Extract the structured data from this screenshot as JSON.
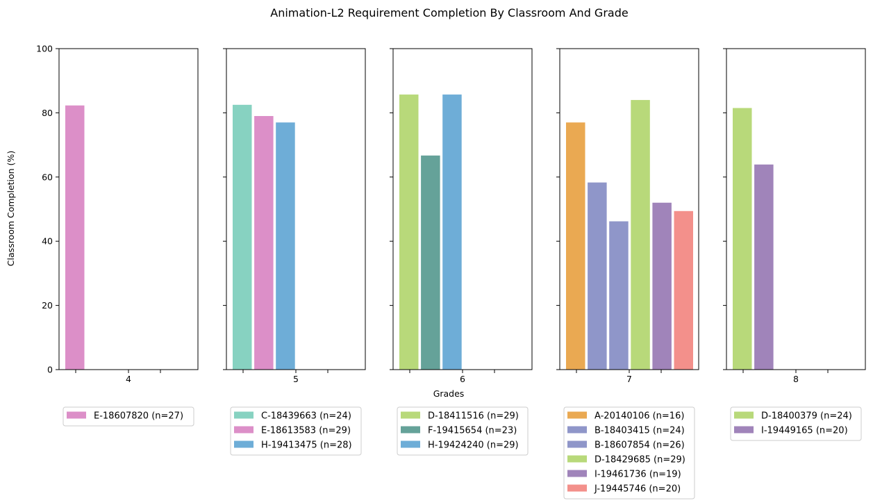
{
  "chart_data": {
    "type": "bar",
    "title": "Animation-L2 Requirement Completion By Classroom And Grade",
    "xlabel": "Grades",
    "ylabel": "Classroom Completion (%)",
    "ylim": [
      0,
      100
    ],
    "yticks": [
      0,
      20,
      40,
      60,
      80,
      100
    ],
    "grid": false,
    "legend_placement": "below each panel",
    "panels": [
      {
        "grade": "4",
        "series": [
          {
            "name": "E-18607820 (n=27)",
            "value": 82.3,
            "color": "#dc8fc8"
          }
        ]
      },
      {
        "grade": "5",
        "series": [
          {
            "name": "C-18439663 (n=24)",
            "value": 82.5,
            "color": "#87d2c1"
          },
          {
            "name": "E-18613583 (n=29)",
            "value": 79.0,
            "color": "#dc8fc8"
          },
          {
            "name": "H-19413475 (n=28)",
            "value": 77.0,
            "color": "#6eadd7"
          }
        ]
      },
      {
        "grade": "6",
        "series": [
          {
            "name": "D-18411516 (n=29)",
            "value": 85.7,
            "color": "#b8d97a"
          },
          {
            "name": "F-19415654 (n=23)",
            "value": 66.7,
            "color": "#65a299"
          },
          {
            "name": "H-19424240 (n=29)",
            "value": 85.7,
            "color": "#6eadd7"
          }
        ]
      },
      {
        "grade": "7",
        "series": [
          {
            "name": "A-20140106 (n=16)",
            "value": 77.0,
            "color": "#eaa952"
          },
          {
            "name": "B-18403415 (n=24)",
            "value": 58.3,
            "color": "#8f96c9"
          },
          {
            "name": "B-18607854 (n=26)",
            "value": 46.2,
            "color": "#8f96c9"
          },
          {
            "name": "D-18429685 (n=29)",
            "value": 84.0,
            "color": "#b8d97a"
          },
          {
            "name": "I-19461736 (n=19)",
            "value": 52.0,
            "color": "#a084ba"
          },
          {
            "name": "J-19445746 (n=20)",
            "value": 49.4,
            "color": "#f3908b"
          }
        ]
      },
      {
        "grade": "8",
        "series": [
          {
            "name": "D-18400379 (n=24)",
            "value": 81.5,
            "color": "#b8d97a"
          },
          {
            "name": "I-19449165 (n=20)",
            "value": 63.9,
            "color": "#a084ba"
          }
        ]
      }
    ]
  }
}
